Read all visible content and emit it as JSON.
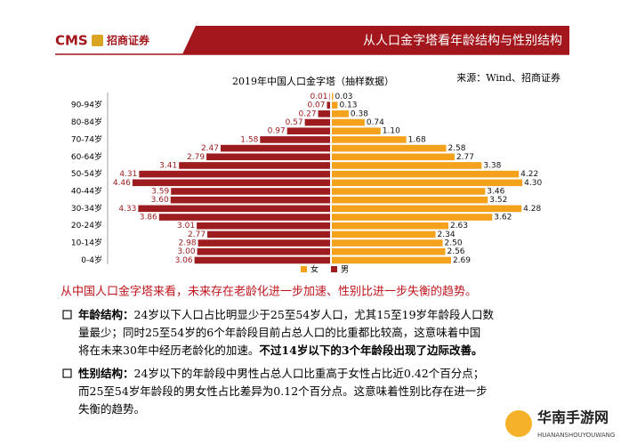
{
  "header": {
    "logo": "CMS",
    "company": "招商证券",
    "title": "从人口金字塔看年龄结构与性别结构"
  },
  "chart_data": {
    "type": "pyramid",
    "title": "2019年中国人口金字塔（抽样数据）",
    "source": "来源：Wind、招商证券",
    "categories": [
      null,
      "90-94岁",
      null,
      "80-84岁",
      null,
      "70-74岁",
      null,
      "60-64岁",
      null,
      "50-54岁",
      null,
      "40-44岁",
      null,
      "30-34岁",
      null,
      "20-24岁",
      null,
      "10-14岁",
      null,
      "0-4岁"
    ],
    "series": [
      {
        "name": "女",
        "color": "#f4a11c",
        "side": "right",
        "values": [
          0.03,
          0.13,
          0.38,
          0.74,
          1.1,
          1.68,
          2.58,
          2.77,
          3.38,
          4.22,
          4.3,
          3.46,
          3.52,
          4.28,
          3.62,
          2.63,
          2.34,
          2.5,
          2.56,
          2.69
        ],
        "value_labels": [
          "0.03",
          "0.13",
          "0.38",
          "0.74",
          "1.10",
          "1.68",
          "2.58",
          "2.77",
          "3.38",
          "4.22",
          "4.30",
          "3.46",
          "3.52",
          "4.28",
          "3.62",
          "2.63",
          "2.34",
          "2.50",
          "2.56",
          "2.69"
        ]
      },
      {
        "name": "男",
        "color": "#9c1c20",
        "side": "left",
        "values": [
          0.01,
          0.07,
          0.27,
          0.57,
          0.97,
          1.58,
          2.47,
          2.79,
          3.41,
          4.31,
          4.46,
          3.59,
          3.6,
          4.33,
          3.86,
          3.01,
          2.77,
          2.98,
          3.0,
          3.06
        ],
        "value_labels": [
          "0.01",
          "0.07",
          "0.27",
          "0.57",
          "0.97",
          "1.58",
          "2.47",
          "2.79",
          "3.41",
          "4.31",
          "4.46",
          "3.59",
          "3.60",
          "4.33",
          "3.86",
          "3.01",
          "2.77",
          "2.98",
          "3.00",
          "3.06"
        ]
      }
    ]
  },
  "summary": "从中国人口金字塔来看，未来存在老龄化进一步加速、性别比进一步失衡的趋势。",
  "bullets": [
    {
      "lines": [
        [
          {
            "text": "年龄结构：",
            "bold": true
          },
          {
            "text": "24岁以下人口占比明显少于25至54岁人口，尤其15至19岁年龄段人口数",
            "bold": false
          }
        ],
        [
          {
            "text": "量最少；同时25至54岁的6个年龄段目前占总人口的比重都比较高，这意味着中国",
            "bold": false
          }
        ],
        [
          {
            "text": "将在未来30年中经历老龄化的加速。",
            "bold": false
          },
          {
            "text": "不过14岁以下的3个年龄段出现了边际改善。",
            "bold": true
          }
        ]
      ]
    },
    {
      "lines": [
        [
          {
            "text": "性别结构：",
            "bold": true
          },
          {
            "text": "24岁以下的年龄段中男性占总人口比重高于女性占比近0.42个百分点；",
            "bold": false
          }
        ],
        [
          {
            "text": "而25至54岁年龄段的男女性占比差异为0.12个百分点。这意味着性别比存在进一步",
            "bold": false
          }
        ],
        [
          {
            "text": "失衡的趋势。",
            "bold": false
          }
        ]
      ]
    }
  ],
  "watermark": {
    "name": "华南手游网",
    "url": "HUANANSHOUYOUWANG"
  }
}
